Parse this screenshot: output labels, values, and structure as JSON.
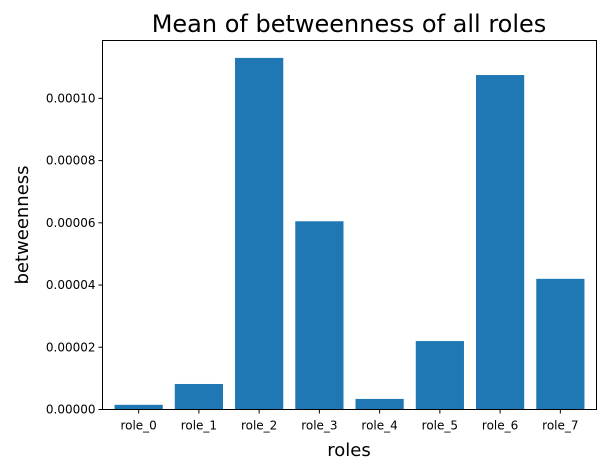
{
  "chart_data": {
    "type": "bar",
    "title": "Mean of betweenness of all roles",
    "xlabel": "roles",
    "ylabel": "betweenness",
    "categories": [
      "role_0",
      "role_1",
      "role_2",
      "role_3",
      "role_4",
      "role_5",
      "role_6",
      "role_7"
    ],
    "values": [
      1.5e-06,
      8.2e-06,
      0.000113,
      6.05e-05,
      3.4e-06,
      2.2e-05,
      0.0001075,
      4.2e-05
    ],
    "ylim": [
      0,
      0.0001186
    ],
    "yticks": [
      0,
      2e-05,
      4e-05,
      6e-05,
      8e-05,
      0.0001
    ],
    "ytick_labels": [
      "0.00000",
      "0.00002",
      "0.00004",
      "0.00006",
      "0.00008",
      "0.00010"
    ],
    "bar_color": "#1f77b4",
    "grid": false,
    "legend": false
  }
}
